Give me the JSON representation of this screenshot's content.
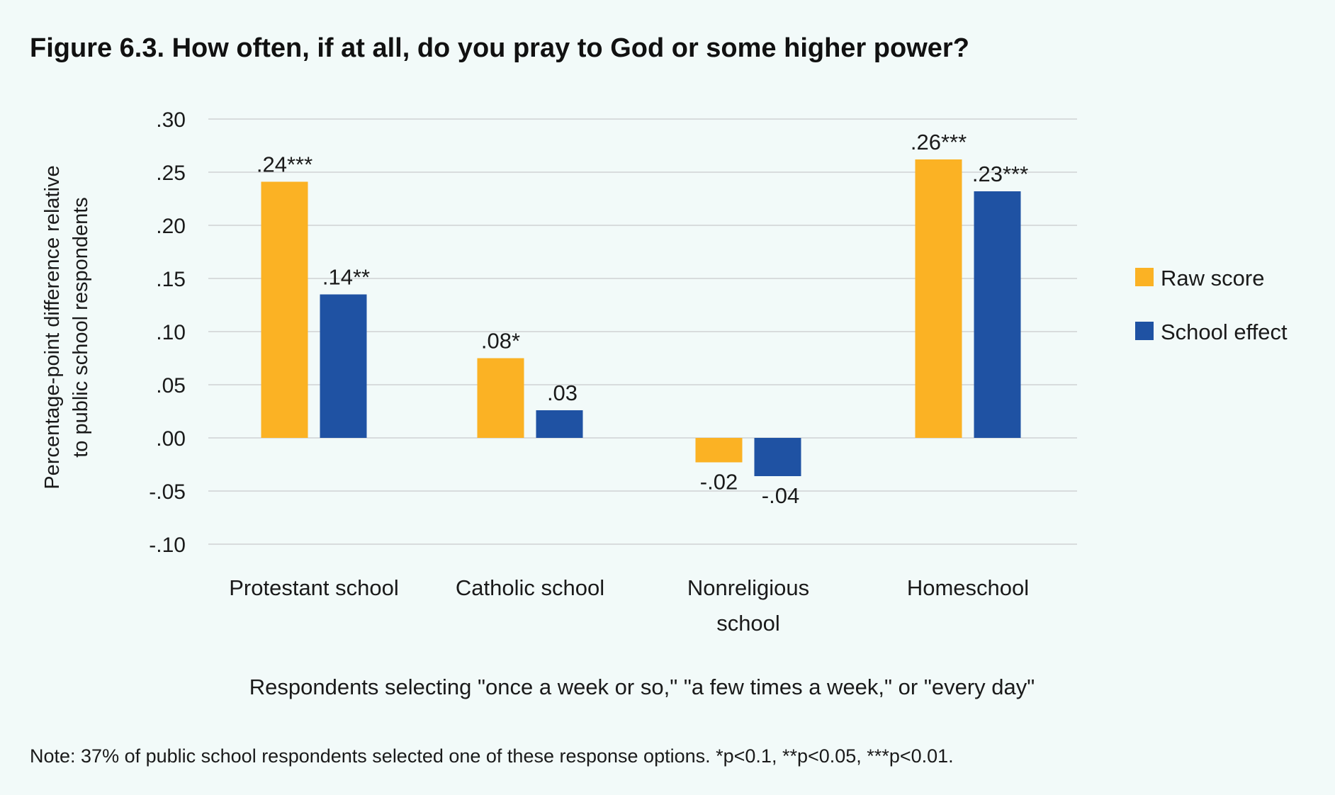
{
  "chart_data": {
    "type": "bar",
    "title": "Figure 6.3. How often, if at all, do you pray to God or some higher power?",
    "xlabel": "Respondents selecting \"once a week or so,\" \"a few times a week,\" or \"every day\"",
    "ylabel": [
      "Percentage-point difference relative",
      "to public school respondents"
    ],
    "ylim": [
      -0.1,
      0.3
    ],
    "yticks": [
      0.3,
      0.25,
      0.2,
      0.15,
      0.1,
      0.05,
      0.0,
      -0.05,
      -0.1
    ],
    "ytick_labels": [
      ".30",
      ".25",
      ".20",
      ".15",
      ".10",
      ".05",
      ".00",
      "-.05",
      "-.10"
    ],
    "grid": true,
    "legend_position": "right",
    "categories": [
      [
        "Protestant school"
      ],
      [
        "Catholic school"
      ],
      [
        "Nonreligious",
        "school"
      ],
      [
        "Homeschool"
      ]
    ],
    "series": [
      {
        "name": "Raw score",
        "color": "#FBB224",
        "values": [
          0.241,
          0.075,
          -0.023,
          0.262
        ],
        "labels": [
          ".24***",
          ".08*",
          "-.02",
          ".26***"
        ]
      },
      {
        "name": "School effect",
        "color": "#1F52A3",
        "values": [
          0.135,
          0.026,
          -0.036,
          0.232
        ],
        "labels": [
          ".14**",
          ".03",
          "-.04",
          ".23***"
        ]
      }
    ],
    "note": "Note: 37% of public school respondents selected one of these response options. *p<0.1, **p<0.05, ***p<0.01."
  }
}
